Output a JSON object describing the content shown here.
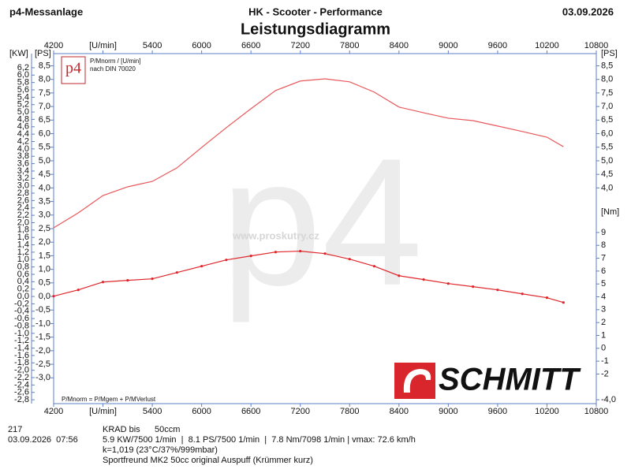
{
  "chart_data": {
    "type": "line",
    "header_left": "p4-Messanlage",
    "header_center": "HK - Scooter - Performance",
    "header_right": "03.09.2026",
    "title": "Leistungsdiagramm",
    "logo_text": "p4",
    "logo_caption_1": "P/Mnorm / [U/min]",
    "logo_caption_2": "nach DIN 70020",
    "watermark_url": "www.proskutry.cz",
    "watermark_big": "p4",
    "formula_note": "P/Mnorm = P/Mgem + P/MVerlust",
    "brand_logo": "SCHMITT",
    "footer_id": "217",
    "footer_datetime": "03.09.2026  07:56",
    "footer_class": "KRAD bis      50ccm",
    "footer_summary": "5.9 KW/7500 1/min  |  8.1 PS/7500 1/min  |  7.8 Nm/7098 1/min | vmax: 72.6 km/h",
    "footer_conditions": "k=1,019 (23°C/37%/999mbar)",
    "footer_vehicle": "Sportfreund MK2 50cc original Auspuff (Krümmer kurz)",
    "y_kw_unit": "[KW]",
    "y_ps_unit": "[PS]",
    "y2_unit": "[Nm]",
    "xlim": [
      4200,
      10800
    ],
    "xticks": [
      4200,
      {
        "value": 4800,
        "label": "[U/min]"
      },
      5400,
      6000,
      6600,
      7200,
      7800,
      8400,
      9000,
      9600,
      10200,
      10800
    ],
    "ylim": [
      -3.95,
      8.95
    ],
    "yticks": [
      {
        "value": -3.0,
        "label": "-3,0"
      },
      {
        "value": -2.5,
        "label": "-2,5"
      },
      {
        "value": -2.0,
        "label": "-2,0"
      },
      {
        "value": -1.5,
        "label": "-1,5"
      },
      {
        "value": -1.0,
        "label": "-1,0"
      },
      {
        "value": -0.5,
        "label": "-0,5"
      },
      {
        "value": 0,
        "label": "0,0"
      },
      {
        "value": 0.5,
        "label": "0,5"
      },
      {
        "value": 1.0,
        "label": "1,0"
      },
      {
        "value": 1.5,
        "label": "1,5"
      },
      {
        "value": 2.0,
        "label": "2,0"
      },
      {
        "value": 2.5,
        "label": "2,5"
      },
      {
        "value": 3.0,
        "label": "3,0"
      },
      {
        "value": 3.5,
        "label": "3,5"
      },
      {
        "value": 4.0,
        "label": "4,0"
      },
      {
        "value": 4.5,
        "label": "4,5"
      },
      {
        "value": 5.0,
        "label": "5,0"
      },
      {
        "value": 5.5,
        "label": "5,5"
      },
      {
        "value": 6.0,
        "label": "6,0"
      },
      {
        "value": 6.5,
        "label": "6,5"
      },
      {
        "value": 7.0,
        "label": "7,0"
      },
      {
        "value": 7.5,
        "label": "7,5"
      },
      {
        "value": 8.0,
        "label": "8,0"
      },
      {
        "value": 8.5,
        "label": "8,5"
      }
    ],
    "y_ps_right_ticks": [
      {
        "value": 4.0,
        "label": "4,0"
      },
      {
        "value": 4.5,
        "label": "4,5"
      },
      {
        "value": 5.0,
        "label": "5,0"
      },
      {
        "value": 5.5,
        "label": "5,5"
      },
      {
        "value": 6.0,
        "label": "6,0"
      },
      {
        "value": 6.5,
        "label": "6,5"
      },
      {
        "value": 7.0,
        "label": "7,0"
      },
      {
        "value": 7.5,
        "label": "7,5"
      },
      {
        "value": 8.0,
        "label": "8,0"
      },
      {
        "value": 8.5,
        "label": "8,5"
      }
    ],
    "y_kw_lim": [
      -2.905,
      6.583
    ],
    "y_kw_ticks": [
      {
        "value": -2.8,
        "label": "-2,8"
      },
      {
        "value": -2.6,
        "label": "-2,6"
      },
      {
        "value": -2.4,
        "label": "-2,4"
      },
      {
        "value": -2.2,
        "label": "-2,2"
      },
      {
        "value": -2.0,
        "label": "-2,0"
      },
      {
        "value": -1.8,
        "label": "-1,8"
      },
      {
        "value": -1.6,
        "label": "-1,6"
      },
      {
        "value": -1.4,
        "label": "-1,4"
      },
      {
        "value": -1.2,
        "label": "-1,2"
      },
      {
        "value": -1.0,
        "label": "-1,0"
      },
      {
        "value": -0.8,
        "label": "-0,8"
      },
      {
        "value": -0.6,
        "label": "-0,6"
      },
      {
        "value": -0.4,
        "label": "-0,4"
      },
      {
        "value": -0.2,
        "label": "-0,2"
      },
      {
        "value": 0,
        "label": "0,0"
      },
      {
        "value": 0.2,
        "label": "0,2"
      },
      {
        "value": 0.4,
        "label": "0,4"
      },
      {
        "value": 0.6,
        "label": "0,6"
      },
      {
        "value": 0.8,
        "label": "0,8"
      },
      {
        "value": 1.0,
        "label": "1,0"
      },
      {
        "value": 1.2,
        "label": "1,2"
      },
      {
        "value": 1.4,
        "label": "1,4"
      },
      {
        "value": 1.6,
        "label": "1,6"
      },
      {
        "value": 1.8,
        "label": "1,8"
      },
      {
        "value": 2.0,
        "label": "2,0"
      },
      {
        "value": 2.2,
        "label": "2,2"
      },
      {
        "value": 2.4,
        "label": "2,4"
      },
      {
        "value": 2.6,
        "label": "2,6"
      },
      {
        "value": 2.8,
        "label": "2,8"
      },
      {
        "value": 3.0,
        "label": "3,0"
      },
      {
        "value": 3.2,
        "label": "3,2"
      },
      {
        "value": 3.4,
        "label": "3,4"
      },
      {
        "value": 3.6,
        "label": "3,6"
      },
      {
        "value": 3.8,
        "label": "3,8"
      },
      {
        "value": 4.0,
        "label": "4,0"
      },
      {
        "value": 4.2,
        "label": "4,2"
      },
      {
        "value": 4.4,
        "label": "4,4"
      },
      {
        "value": 4.6,
        "label": "4,6"
      },
      {
        "value": 4.8,
        "label": "4,8"
      },
      {
        "value": 5.0,
        "label": "5,0"
      },
      {
        "value": 5.2,
        "label": "5,2"
      },
      {
        "value": 5.4,
        "label": "5,4"
      },
      {
        "value": 5.6,
        "label": "5,6"
      },
      {
        "value": 5.8,
        "label": "5,8"
      },
      {
        "value": 6.0,
        "label": "6,0"
      },
      {
        "value": 6.2,
        "label": "6,2"
      }
    ],
    "y2lim": [
      -4.3,
      22.9
    ],
    "y2ticks": [
      {
        "value": -4,
        "label": "-4,0"
      },
      -2,
      -1,
      0,
      1,
      2,
      3,
      4,
      5,
      6,
      7,
      8,
      9
    ],
    "x": [
      4200,
      4500,
      4800,
      5100,
      5400,
      5700,
      6000,
      6300,
      6600,
      6900,
      7200,
      7500,
      7800,
      8100,
      8400,
      8700,
      9000,
      9300,
      9600,
      9900,
      10200,
      10400
    ],
    "series": [
      {
        "name": "PS",
        "color": "#e8575a",
        "values": [
          2.53,
          3.08,
          3.72,
          4.04,
          4.24,
          4.74,
          5.49,
          6.22,
          6.92,
          7.59,
          7.94,
          8.02,
          7.91,
          7.53,
          6.98,
          6.77,
          6.57,
          6.48,
          6.28,
          6.08,
          5.87,
          5.52
        ]
      },
      {
        "name": "Nm",
        "color": "#e0262b",
        "axis": "y2",
        "markers": true,
        "values": [
          4.05,
          4.54,
          5.15,
          5.28,
          5.4,
          5.89,
          6.38,
          6.87,
          7.18,
          7.48,
          7.55,
          7.36,
          6.93,
          6.38,
          5.64,
          5.34,
          5.03,
          4.79,
          4.54,
          4.23,
          3.93,
          3.56
        ]
      }
    ]
  }
}
